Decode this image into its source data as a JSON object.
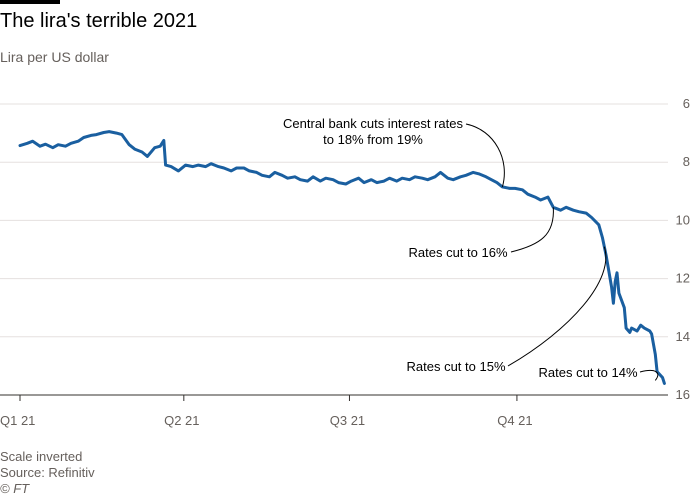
{
  "colors": {
    "line": "#1a5fa0",
    "grid": "#e5e0df",
    "axis": "#33302e"
  },
  "footer": {
    "note": "Scale inverted",
    "source": "Source: Refinitiv",
    "copyright": "© FT"
  },
  "chart_data": {
    "type": "line",
    "title": "The lira's terrible 2021",
    "subtitle": "Lira per US dollar",
    "xlabel": "",
    "ylabel": "",
    "x_ticks": [
      "Q1 21",
      "Q2 21",
      "Q3 21",
      "Q4 21"
    ],
    "y_ticks": [
      6,
      8,
      10,
      12,
      14,
      16
    ],
    "ylim": [
      6,
      16
    ],
    "y_inverted": true,
    "y_axis_side": "right",
    "grid": "horizontal",
    "xlim": [
      "2021-01-01",
      "2021-12-23"
    ],
    "series": [
      {
        "values": [
          [
            "2021-01-01",
            7.43
          ],
          [
            "2021-01-05",
            7.35
          ],
          [
            "2021-01-08",
            7.28
          ],
          [
            "2021-01-12",
            7.45
          ],
          [
            "2021-01-15",
            7.38
          ],
          [
            "2021-01-19",
            7.5
          ],
          [
            "2021-01-22",
            7.4
          ],
          [
            "2021-01-26",
            7.45
          ],
          [
            "2021-01-29",
            7.35
          ],
          [
            "2021-02-02",
            7.28
          ],
          [
            "2021-02-05",
            7.15
          ],
          [
            "2021-02-09",
            7.08
          ],
          [
            "2021-02-12",
            7.05
          ],
          [
            "2021-02-16",
            6.98
          ],
          [
            "2021-02-19",
            6.95
          ],
          [
            "2021-02-23",
            7.0
          ],
          [
            "2021-02-26",
            7.05
          ],
          [
            "2021-03-02",
            7.4
          ],
          [
            "2021-03-05",
            7.55
          ],
          [
            "2021-03-09",
            7.65
          ],
          [
            "2021-03-12",
            7.8
          ],
          [
            "2021-03-16",
            7.5
          ],
          [
            "2021-03-19",
            7.45
          ],
          [
            "2021-03-21",
            7.25
          ],
          [
            "2021-03-22",
            8.1
          ],
          [
            "2021-03-25",
            8.15
          ],
          [
            "2021-03-29",
            8.3
          ],
          [
            "2021-04-02",
            8.1
          ],
          [
            "2021-04-06",
            8.15
          ],
          [
            "2021-04-09",
            8.1
          ],
          [
            "2021-04-13",
            8.15
          ],
          [
            "2021-04-16",
            8.05
          ],
          [
            "2021-04-20",
            8.15
          ],
          [
            "2021-04-23",
            8.2
          ],
          [
            "2021-04-27",
            8.3
          ],
          [
            "2021-04-30",
            8.2
          ],
          [
            "2021-05-04",
            8.2
          ],
          [
            "2021-05-07",
            8.3
          ],
          [
            "2021-05-11",
            8.35
          ],
          [
            "2021-05-14",
            8.45
          ],
          [
            "2021-05-18",
            8.5
          ],
          [
            "2021-05-21",
            8.35
          ],
          [
            "2021-05-25",
            8.45
          ],
          [
            "2021-05-28",
            8.55
          ],
          [
            "2021-06-01",
            8.5
          ],
          [
            "2021-06-04",
            8.6
          ],
          [
            "2021-06-08",
            8.65
          ],
          [
            "2021-06-11",
            8.5
          ],
          [
            "2021-06-15",
            8.65
          ],
          [
            "2021-06-18",
            8.55
          ],
          [
            "2021-06-22",
            8.6
          ],
          [
            "2021-06-25",
            8.7
          ],
          [
            "2021-06-29",
            8.75
          ],
          [
            "2021-07-02",
            8.65
          ],
          [
            "2021-07-06",
            8.55
          ],
          [
            "2021-07-09",
            8.7
          ],
          [
            "2021-07-13",
            8.6
          ],
          [
            "2021-07-16",
            8.7
          ],
          [
            "2021-07-20",
            8.65
          ],
          [
            "2021-07-23",
            8.55
          ],
          [
            "2021-07-27",
            8.65
          ],
          [
            "2021-07-30",
            8.55
          ],
          [
            "2021-08-03",
            8.6
          ],
          [
            "2021-08-06",
            8.5
          ],
          [
            "2021-08-10",
            8.55
          ],
          [
            "2021-08-13",
            8.6
          ],
          [
            "2021-08-17",
            8.5
          ],
          [
            "2021-08-20",
            8.35
          ],
          [
            "2021-08-24",
            8.55
          ],
          [
            "2021-08-27",
            8.6
          ],
          [
            "2021-08-31",
            8.5
          ],
          [
            "2021-09-03",
            8.45
          ],
          [
            "2021-09-07",
            8.35
          ],
          [
            "2021-09-10",
            8.4
          ],
          [
            "2021-09-14",
            8.5
          ],
          [
            "2021-09-17",
            8.6
          ],
          [
            "2021-09-20",
            8.7
          ],
          [
            "2021-09-23",
            8.85
          ],
          [
            "2021-09-27",
            8.9
          ],
          [
            "2021-09-30",
            8.9
          ],
          [
            "2021-10-04",
            8.95
          ],
          [
            "2021-10-07",
            9.1
          ],
          [
            "2021-10-11",
            9.2
          ],
          [
            "2021-10-14",
            9.3
          ],
          [
            "2021-10-18",
            9.2
          ],
          [
            "2021-10-21",
            9.55
          ],
          [
            "2021-10-25",
            9.65
          ],
          [
            "2021-10-28",
            9.55
          ],
          [
            "2021-11-01",
            9.65
          ],
          [
            "2021-11-04",
            9.7
          ],
          [
            "2021-11-08",
            9.75
          ],
          [
            "2021-11-11",
            9.9
          ],
          [
            "2021-11-15",
            10.15
          ],
          [
            "2021-11-17",
            10.6
          ],
          [
            "2021-11-19",
            11.2
          ],
          [
            "2021-11-22",
            12.3
          ],
          [
            "2021-11-23",
            12.85
          ],
          [
            "2021-11-24",
            12.1
          ],
          [
            "2021-11-25",
            11.8
          ],
          [
            "2021-11-26",
            12.5
          ],
          [
            "2021-11-29",
            13.0
          ],
          [
            "2021-11-30",
            13.7
          ],
          [
            "2021-12-02",
            13.85
          ],
          [
            "2021-12-03",
            13.7
          ],
          [
            "2021-12-06",
            13.8
          ],
          [
            "2021-12-08",
            13.6
          ],
          [
            "2021-12-10",
            13.7
          ],
          [
            "2021-12-13",
            13.8
          ],
          [
            "2021-12-14",
            13.9
          ],
          [
            "2021-12-16",
            14.6
          ],
          [
            "2021-12-17",
            15.2
          ],
          [
            "2021-12-20",
            15.4
          ],
          [
            "2021-12-21",
            15.6
          ]
        ]
      }
    ],
    "annotations": [
      {
        "lines": [
          "Central bank cuts interest rates",
          "to 18% from 19%"
        ],
        "date": "2021-09-23",
        "value": 8.85
      },
      {
        "lines": [
          "Rates cut to 16%"
        ],
        "date": "2021-10-21",
        "value": 9.55
      },
      {
        "lines": [
          "Rates cut to 15%"
        ],
        "date": "2021-11-18",
        "value": 10.9
      },
      {
        "lines": [
          "Rates cut to 14%"
        ],
        "date": "2021-12-16",
        "value": 15.5
      }
    ]
  }
}
